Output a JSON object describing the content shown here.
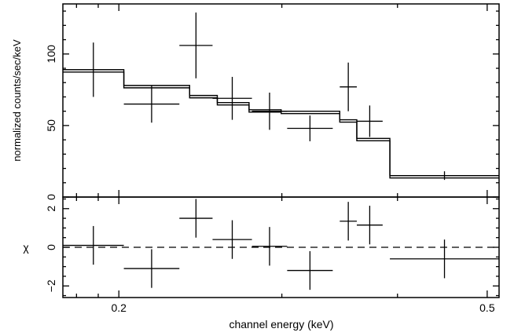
{
  "chart_data": [
    {
      "type": "scatter",
      "panel": "top",
      "ylabel": "normalized counts/sec/keV",
      "ylim": [
        0,
        135
      ],
      "yticks": [
        {
          "v": 0,
          "label": "0"
        },
        {
          "v": 50,
          "label": "50"
        },
        {
          "v": 100,
          "label": "100"
        }
      ],
      "xscale": "log",
      "xlim": [
        0.174,
        0.515
      ],
      "grid": false,
      "series": [
        {
          "role": "data",
          "style": "crosses",
          "points": [
            {
              "x0": 0.174,
              "x1": 0.2025,
              "y": 89,
              "yerr": 19
            },
            {
              "x0": 0.2025,
              "x1": 0.2325,
              "y": 65,
              "yerr": 13
            },
            {
              "x0": 0.2325,
              "x1": 0.2525,
              "y": 106,
              "yerr": 23
            },
            {
              "x0": 0.2525,
              "x1": 0.2785,
              "y": 69,
              "yerr": 15
            },
            {
              "x0": 0.2785,
              "x1": 0.304,
              "y": 60,
              "yerr": 13
            },
            {
              "x0": 0.304,
              "x1": 0.3405,
              "y": 48,
              "yerr": 9
            },
            {
              "x0": 0.3465,
              "x1": 0.3615,
              "y": 77,
              "yerr": 17
            },
            {
              "x0": 0.3615,
              "x1": 0.3855,
              "y": 53,
              "yerr": 11
            },
            {
              "x0": 0.3925,
              "x1": 0.515,
              "y": 15,
              "yerr": 3
            }
          ]
        },
        {
          "role": "model",
          "style": "step-double",
          "bins": [
            {
              "x0": 0.174,
              "x1": 0.2025,
              "y": 89
            },
            {
              "x0": 0.2025,
              "x1": 0.2385,
              "y": 78
            },
            {
              "x0": 0.2385,
              "x1": 0.2555,
              "y": 71
            },
            {
              "x0": 0.2555,
              "x1": 0.2765,
              "y": 66
            },
            {
              "x0": 0.2765,
              "x1": 0.2995,
              "y": 61
            },
            {
              "x0": 0.2995,
              "x1": 0.3465,
              "y": 60
            },
            {
              "x0": 0.3465,
              "x1": 0.3615,
              "y": 54
            },
            {
              "x0": 0.3615,
              "x1": 0.3925,
              "y": 41
            },
            {
              "x0": 0.3925,
              "x1": 0.515,
              "y": 15
            }
          ]
        }
      ]
    },
    {
      "type": "scatter",
      "panel": "bottom",
      "ylabel": "χ",
      "xlabel": "channel energy (keV)",
      "ylim": [
        -2.6,
        2.6
      ],
      "yticks": [
        {
          "v": -2,
          "label": "−2"
        },
        {
          "v": 0,
          "label": "0"
        },
        {
          "v": 2,
          "label": "2"
        }
      ],
      "xscale": "log",
      "xlim": [
        0.174,
        0.515
      ],
      "xticks": [
        {
          "v": 0.2,
          "label": "0.2"
        },
        {
          "v": 0.5,
          "label": "0.5"
        }
      ],
      "grid": false,
      "reference_line": {
        "y": 0,
        "style": "dashed"
      },
      "series": [
        {
          "role": "residuals",
          "style": "crosses",
          "points": [
            {
              "x0": 0.174,
              "x1": 0.2025,
              "y": 0.1,
              "yerr": 1.0
            },
            {
              "x0": 0.2025,
              "x1": 0.2325,
              "y": -1.1,
              "yerr": 1.0
            },
            {
              "x0": 0.2325,
              "x1": 0.2525,
              "y": 1.5,
              "yerr": 1.0
            },
            {
              "x0": 0.2525,
              "x1": 0.2785,
              "y": 0.4,
              "yerr": 1.0
            },
            {
              "x0": 0.2785,
              "x1": 0.304,
              "y": 0.05,
              "yerr": 1.0
            },
            {
              "x0": 0.304,
              "x1": 0.3405,
              "y": -1.2,
              "yerr": 1.0
            },
            {
              "x0": 0.3465,
              "x1": 0.3615,
              "y": 1.35,
              "yerr": 1.0
            },
            {
              "x0": 0.3615,
              "x1": 0.3855,
              "y": 1.15,
              "yerr": 1.0
            },
            {
              "x0": 0.3925,
              "x1": 0.515,
              "y": -0.6,
              "yerr": 1.0
            }
          ]
        }
      ]
    }
  ]
}
